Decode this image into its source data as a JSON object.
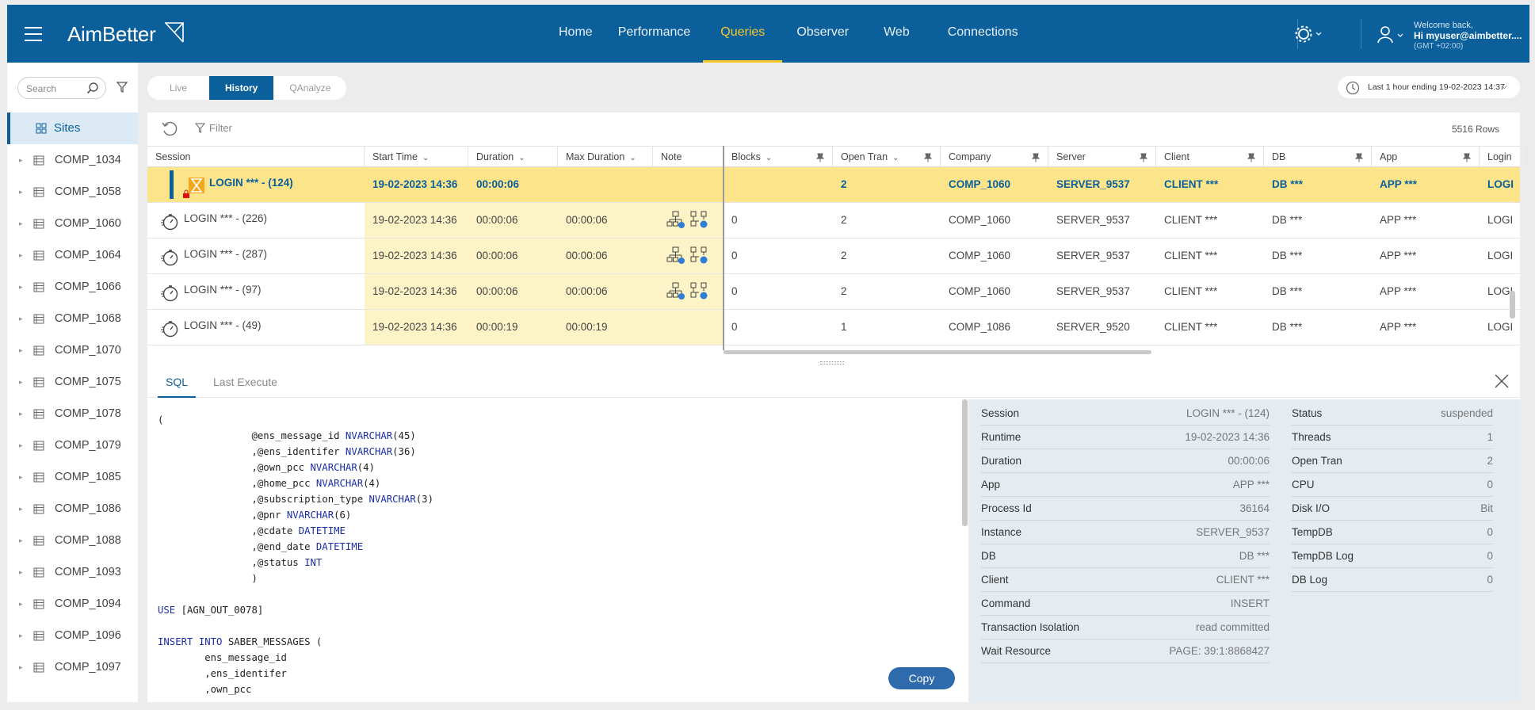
{
  "app": {
    "name": "AimBetter"
  },
  "nav": [
    "Home",
    "Performance",
    "Queries",
    "Observer",
    "Web",
    "Connections"
  ],
  "nav_active": "Queries",
  "user": {
    "welcome": "Welcome back,",
    "name": "Hi myuser@aimbetter....",
    "tz": "(GMT +02:00)"
  },
  "sidebar": {
    "search_placeholder": "Search",
    "sites_label": "Sites",
    "items": [
      "COMP_1034",
      "COMP_1058",
      "COMP_1060",
      "COMP_1064",
      "COMP_1066",
      "COMP_1068",
      "COMP_1070",
      "COMP_1075",
      "COMP_1078",
      "COMP_1079",
      "COMP_1085",
      "COMP_1086",
      "COMP_1088",
      "COMP_1093",
      "COMP_1094",
      "COMP_1096",
      "COMP_1097"
    ]
  },
  "modes": [
    "Live",
    "History",
    "QAnalyze"
  ],
  "mode_active": "History",
  "time_range": "Last 1 hour ending  19-02-2023 14:37",
  "grid": {
    "filter_label": "Filter",
    "row_count": "5516 Rows",
    "columns": [
      "Session",
      "Start Time",
      "Duration",
      "Max Duration",
      "Note",
      "Blocks",
      "Open Tran",
      "Company",
      "Server",
      "Client",
      "DB",
      "App",
      "Login"
    ],
    "rows": [
      {
        "session": "LOGIN *** - (124)",
        "start": "19-02-2023 14:36",
        "duration": "00:00:06",
        "max": "",
        "blocks": "",
        "open": "2",
        "company": "COMP_1060",
        "server": "SERVER_9537",
        "client": "CLIENT ***",
        "db": "DB ***",
        "app": "APP ***",
        "login": "LOGI"
      },
      {
        "session": "LOGIN *** - (226)",
        "start": "19-02-2023 14:36",
        "duration": "00:00:06",
        "max": "00:00:06",
        "blocks": "0",
        "open": "2",
        "company": "COMP_1060",
        "server": "SERVER_9537",
        "client": "CLIENT ***",
        "db": "DB ***",
        "app": "APP ***",
        "login": "LOGI"
      },
      {
        "session": "LOGIN *** - (287)",
        "start": "19-02-2023 14:36",
        "duration": "00:00:06",
        "max": "00:00:06",
        "blocks": "0",
        "open": "2",
        "company": "COMP_1060",
        "server": "SERVER_9537",
        "client": "CLIENT ***",
        "db": "DB ***",
        "app": "APP ***",
        "login": "LOGI"
      },
      {
        "session": "LOGIN *** - (97)",
        "start": "19-02-2023 14:36",
        "duration": "00:00:06",
        "max": "00:00:06",
        "blocks": "0",
        "open": "2",
        "company": "COMP_1060",
        "server": "SERVER_9537",
        "client": "CLIENT ***",
        "db": "DB ***",
        "app": "APP ***",
        "login": "LOGI"
      },
      {
        "session": "LOGIN *** - (49)",
        "start": "19-02-2023 14:36",
        "duration": "00:00:19",
        "max": "00:00:19",
        "blocks": "0",
        "open": "1",
        "company": "COMP_1086",
        "server": "SERVER_9520",
        "client": "CLIENT ***",
        "db": "DB ***",
        "app": "APP ***",
        "login": "LOGI"
      }
    ]
  },
  "bottom": {
    "tabs": [
      "SQL",
      "Last Execute"
    ],
    "copy_label": "Copy",
    "sql_lines": [
      "(",
      "                @ens_message_id NVARCHAR(45)",
      "                ,@ens_identifer NVARCHAR(36)",
      "                ,@own_pcc NVARCHAR(4)",
      "                ,@home_pcc NVARCHAR(4)",
      "                ,@subscription_type NVARCHAR(3)",
      "                ,@pnr NVARCHAR(6)",
      "                ,@cdate DATETIME",
      "                ,@end_date DATETIME",
      "                ,@status INT",
      "                )",
      "",
      "USE [AGN_OUT_0078]",
      "",
      "INSERT INTO SABER_MESSAGES (",
      "        ens_message_id",
      "        ,ens_identifer",
      "        ,own_pcc"
    ],
    "info_left": [
      {
        "k": "Session",
        "v": "LOGIN *** - (124)"
      },
      {
        "k": "Runtime",
        "v": "19-02-2023 14:36"
      },
      {
        "k": "Duration",
        "v": "00:00:06"
      },
      {
        "k": "App",
        "v": "APP ***"
      },
      {
        "k": "Process Id",
        "v": "36164"
      },
      {
        "k": "Instance",
        "v": "SERVER_9537"
      },
      {
        "k": "DB",
        "v": "DB ***"
      },
      {
        "k": "Client",
        "v": "CLIENT ***"
      },
      {
        "k": "Command",
        "v": "INSERT"
      },
      {
        "k": "Transaction Isolation",
        "v": "read committed"
      },
      {
        "k": "Wait Resource",
        "v": "PAGE: 39:1:8868427"
      }
    ],
    "info_right": [
      {
        "k": "Status",
        "v": "suspended"
      },
      {
        "k": "Threads",
        "v": "1"
      },
      {
        "k": "Open Tran",
        "v": "2"
      },
      {
        "k": "CPU",
        "v": "0"
      },
      {
        "k": "Disk I/O",
        "v": "Bit"
      },
      {
        "k": "TempDB",
        "v": "0"
      },
      {
        "k": "TempDB Log",
        "v": "0"
      },
      {
        "k": "DB Log",
        "v": "0"
      }
    ]
  },
  "colors": {
    "brand": "#0b609c",
    "accent": "#f6c82a",
    "selected_row": "#fbe48a",
    "highlight_col": "#fcf3c7"
  }
}
